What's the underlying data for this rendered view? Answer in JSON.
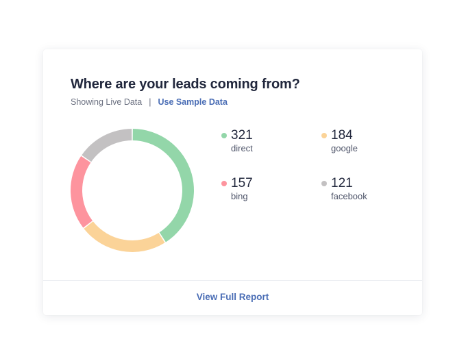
{
  "card": {
    "title": "Where are your leads coming from?",
    "status_text": "Showing Live Data",
    "separator": "|",
    "sample_link": "Use Sample Data",
    "footer_link": "View Full Report"
  },
  "colors": {
    "direct": "#93d6a9",
    "google": "#fbd398",
    "bing": "#fd949e",
    "facebook": "#c3c1c2",
    "link": "#4a6db5",
    "title": "#22283d"
  },
  "chart_data": {
    "type": "pie",
    "categories": [
      "direct",
      "google",
      "bing",
      "facebook"
    ],
    "values": [
      321,
      184,
      157,
      121
    ],
    "colors": [
      "#93d6a9",
      "#fbd398",
      "#fd949e",
      "#c3c1c2"
    ],
    "title": "",
    "legend": "right"
  },
  "legend": {
    "items": [
      {
        "value": "321",
        "label": "direct"
      },
      {
        "value": "184",
        "label": "google"
      },
      {
        "value": "157",
        "label": "bing"
      },
      {
        "value": "121",
        "label": "facebook"
      }
    ]
  }
}
